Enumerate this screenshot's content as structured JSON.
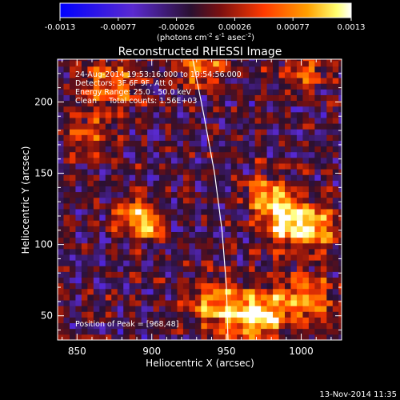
{
  "chart_data": {
    "type": "heatmap",
    "title": "Reconstructed RHESSI Image",
    "xlabel": "Heliocentric X (arcsec)",
    "ylabel": "Heliocentric Y (arcsec)",
    "xlim": [
      837,
      1027
    ],
    "ylim": [
      33,
      230
    ],
    "x_ticks": [
      850,
      900,
      950,
      1000
    ],
    "y_ticks": [
      50,
      100,
      150,
      200
    ],
    "colorbar": {
      "range": [
        -0.0013,
        0.0013
      ],
      "ticks": [
        "-0.0013",
        "-0.00077",
        "-0.00026",
        "0.00026",
        "0.00077",
        "0.0013"
      ],
      "label_main": "(photons cm",
      "label_exp1": "-2",
      "label_mid1": " s",
      "label_exp2": "-1",
      "label_mid2": " asec",
      "label_exp3": "-2",
      "label_end": ")"
    },
    "annotations": [
      "24-Aug-2014 19:53:16.000 to 19:54:56.000",
      "Detectors: 3F 6F 9F, Att 0",
      "Energy Range: 25.0 - 50.0 keV",
      "Clean     Total counts: 1.56E+03"
    ],
    "peak_label": "Position of Peak = [968,48]",
    "peak_position": [
      968,
      48
    ],
    "limb_points": [
      [
        927,
        232
      ],
      [
        935,
        190
      ],
      [
        942,
        150
      ],
      [
        947,
        110
      ],
      [
        950,
        70
      ],
      [
        951,
        33
      ]
    ],
    "sources": [
      {
        "x": 895,
        "y": 110,
        "amp": 1.0,
        "width": 6
      },
      {
        "x": 880,
        "y": 118,
        "amp": 0.55,
        "width": 6
      },
      {
        "x": 890,
        "y": 125,
        "amp": 0.5,
        "width": 7
      },
      {
        "x": 990,
        "y": 115,
        "amp": 0.9,
        "width": 12
      },
      {
        "x": 975,
        "y": 132,
        "amp": 0.7,
        "width": 10
      },
      {
        "x": 1010,
        "y": 108,
        "amp": 0.6,
        "width": 10
      },
      {
        "x": 968,
        "y": 48,
        "amp": 1.0,
        "width": 12
      },
      {
        "x": 940,
        "y": 55,
        "amp": 0.7,
        "width": 12
      },
      {
        "x": 1000,
        "y": 60,
        "amp": 0.6,
        "width": 14
      },
      {
        "x": 870,
        "y": 210,
        "amp": 0.55,
        "width": 14
      },
      {
        "x": 930,
        "y": 225,
        "amp": 0.55,
        "width": 12
      },
      {
        "x": 855,
        "y": 175,
        "amp": 0.45,
        "width": 10
      },
      {
        "x": 1000,
        "y": 220,
        "amp": 0.5,
        "width": 10
      }
    ]
  },
  "footer": {
    "timestamp": "13-Nov-2014 11:35"
  },
  "colors": {
    "background": "#000000",
    "foreground": "#ffffff",
    "limb": "#ffffff",
    "colormap": [
      "#0000ff",
      "#6a1fbf",
      "#2a1030",
      "#a01010",
      "#ff3000",
      "#ff9a00",
      "#ffff80",
      "#ffffff"
    ]
  }
}
